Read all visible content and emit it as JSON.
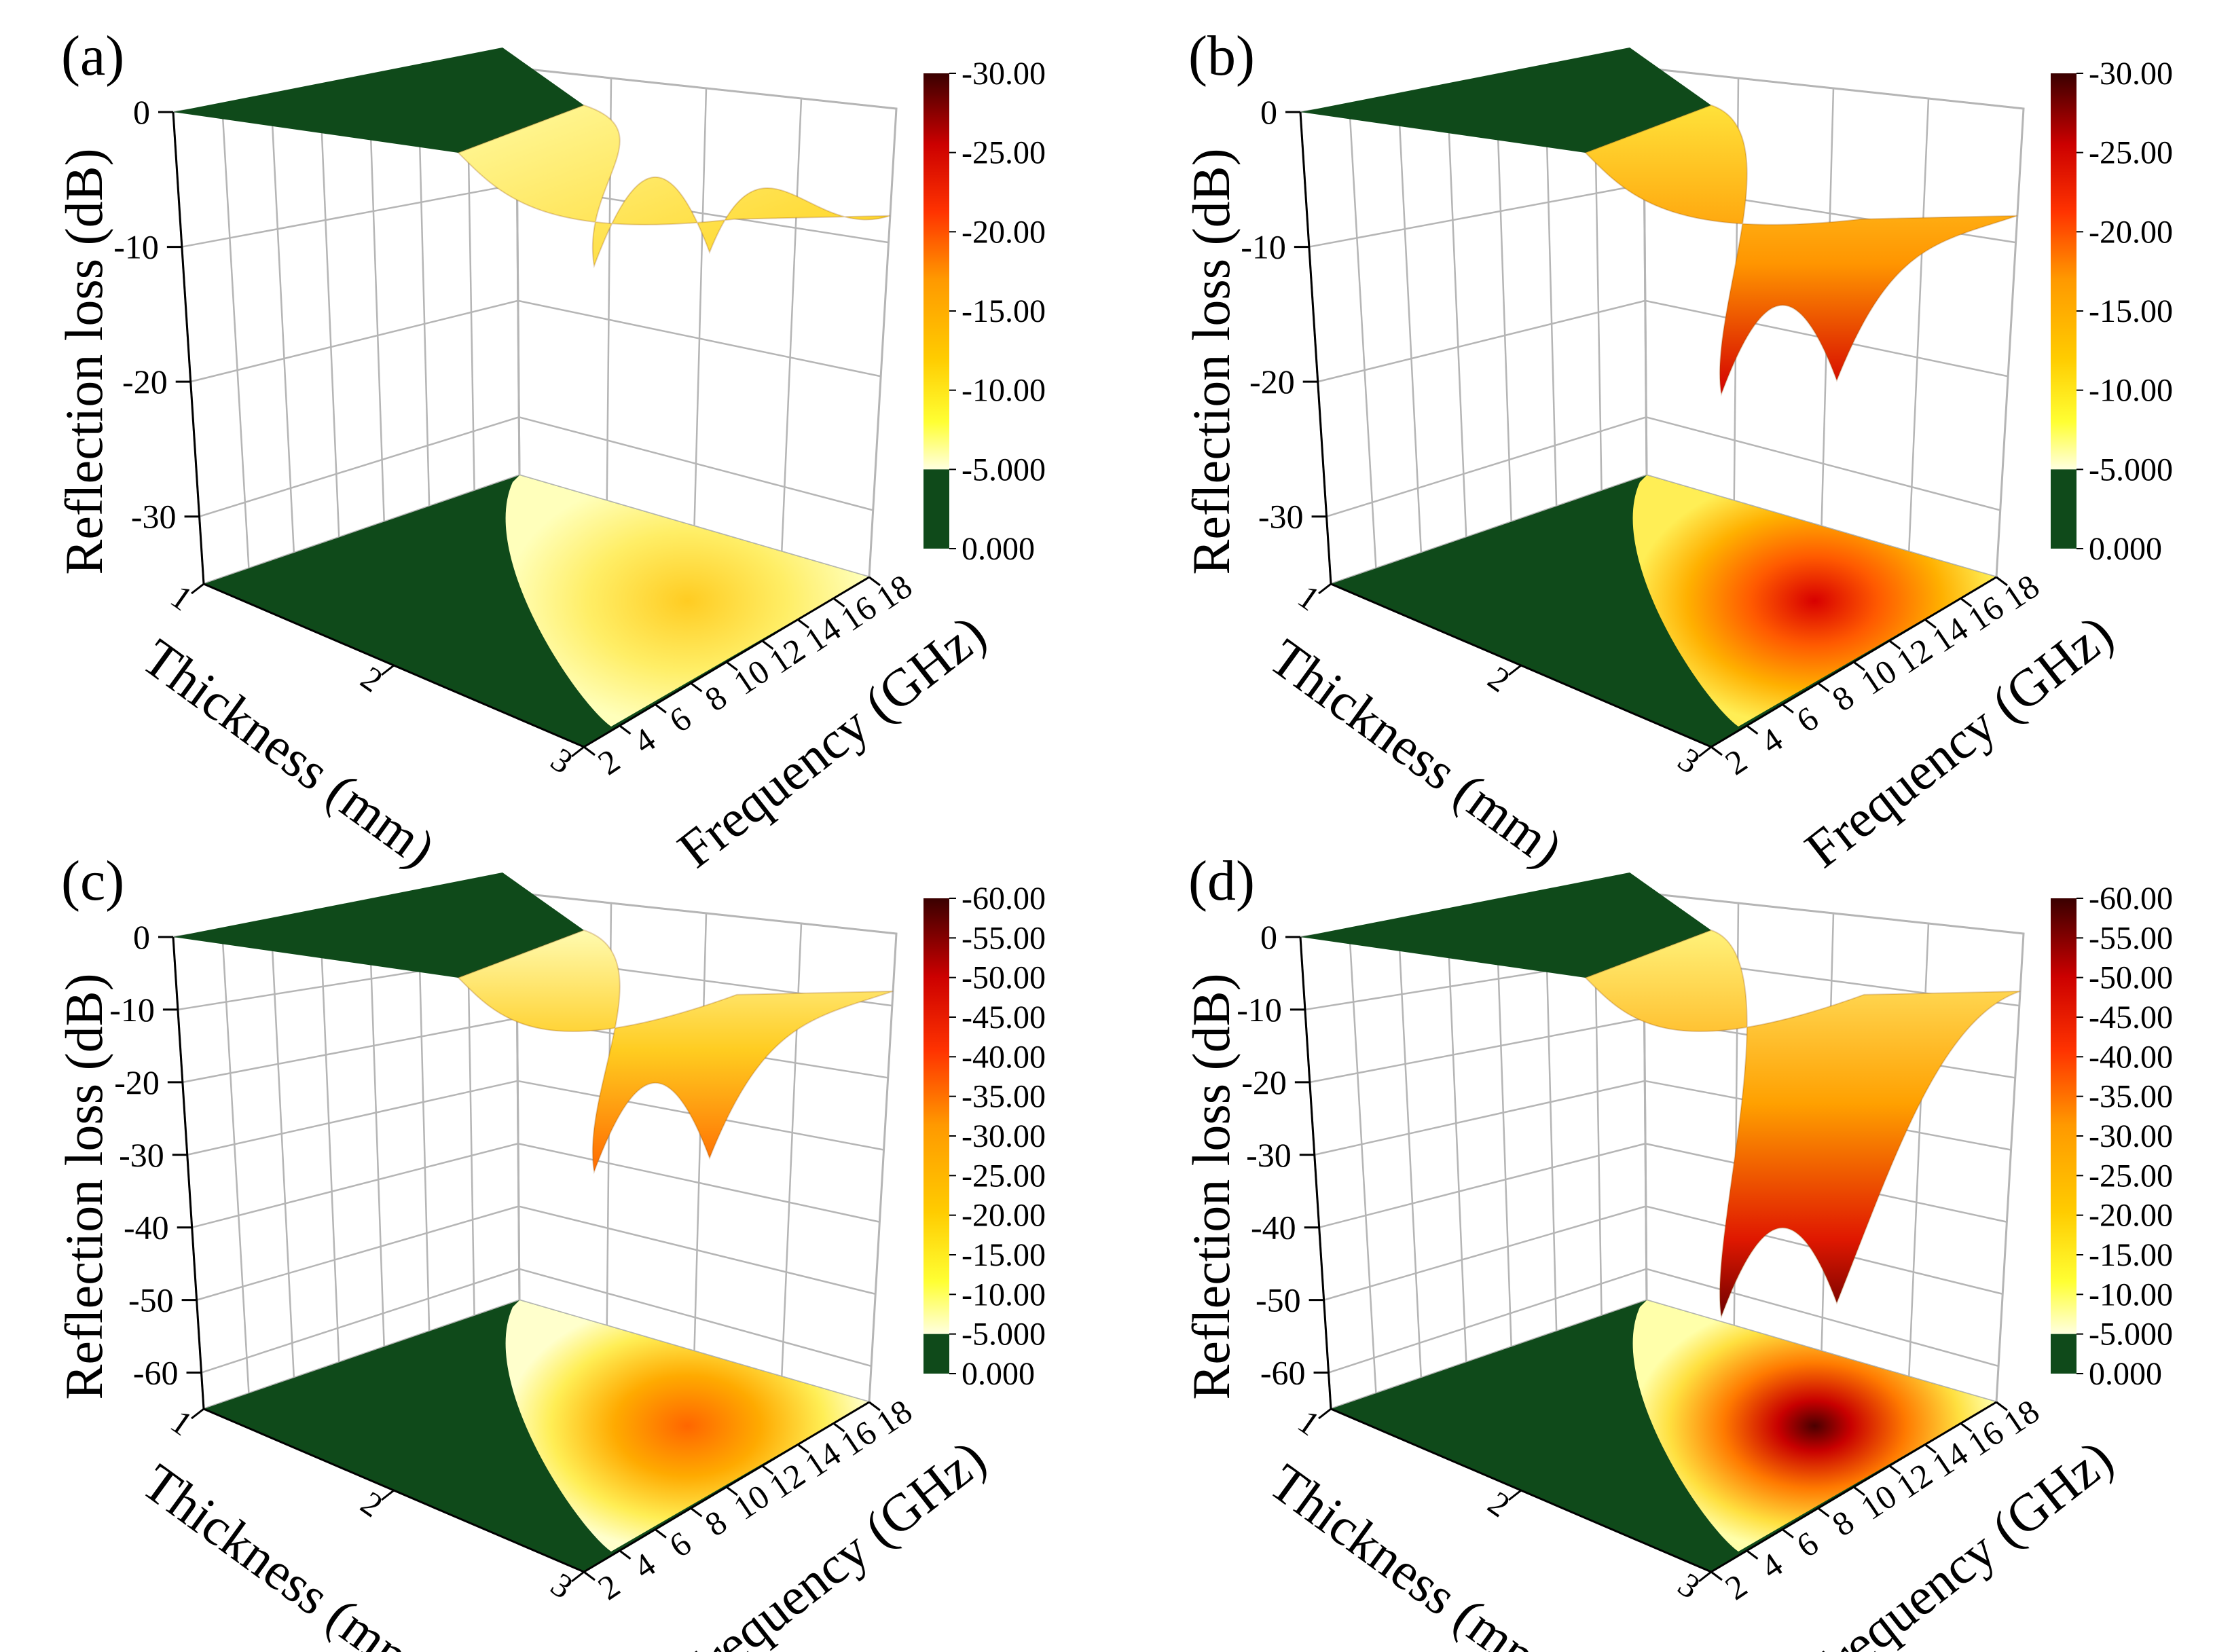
{
  "figure": {
    "axis_titles": {
      "z": "Reflection loss (dB)",
      "thickness": "Thickness (mm)",
      "frequency": "Frequency (GHz)"
    }
  },
  "colors": {
    "below_threshold": "#0f4a1a",
    "ramp": [
      "#ffffe0",
      "#ffff33",
      "#ffcc00",
      "#ff9900",
      "#ff3300",
      "#cc0000",
      "#3a0000"
    ],
    "grid": "#b5b5b5"
  },
  "chart_data": [
    {
      "type": "surface3d",
      "label": "(a)",
      "x_name": "Thickness (mm)",
      "x_ticks": [
        "1",
        "2",
        "3"
      ],
      "x_range": [
        1,
        3
      ],
      "y_name": "Frequency (GHz)",
      "y_ticks": [
        "2",
        "4",
        "6",
        "8",
        "10",
        "12",
        "14",
        "16",
        "18"
      ],
      "y_range": [
        2,
        18
      ],
      "z_name": "Reflection loss (dB)",
      "z_ticks": [
        "0",
        "-10",
        "-20",
        "-30"
      ],
      "z_range": [
        -35,
        0
      ],
      "colorbar_labels": [
        "-30.00",
        "-25.00",
        "-20.00",
        "-15.00",
        "-10.00",
        "-5.000",
        "0.000"
      ],
      "colorbar_range": [
        -30,
        0
      ],
      "threshold_db": -5,
      "min_reflection_loss_db": -12,
      "projection": "contour map on floor"
    },
    {
      "type": "surface3d",
      "label": "(b)",
      "x_name": "Thickness (mm)",
      "x_ticks": [
        "1",
        "2",
        "3"
      ],
      "x_range": [
        1,
        3
      ],
      "y_name": "Frequency (GHz)",
      "y_ticks": [
        "2",
        "4",
        "6",
        "8",
        "10",
        "12",
        "14",
        "16",
        "18"
      ],
      "y_range": [
        2,
        18
      ],
      "z_name": "Reflection loss (dB)",
      "z_ticks": [
        "0",
        "-10",
        "-20",
        "-30"
      ],
      "z_range": [
        -35,
        0
      ],
      "colorbar_labels": [
        "-30.00",
        "-25.00",
        "-20.00",
        "-15.00",
        "-10.00",
        "-5.000",
        "0.000"
      ],
      "colorbar_range": [
        -30,
        0
      ],
      "threshold_db": -5,
      "min_reflection_loss_db": -22,
      "projection": "contour map on floor"
    },
    {
      "type": "surface3d",
      "label": "(c)",
      "x_name": "Thickness (mm)",
      "x_ticks": [
        "1",
        "2",
        "3"
      ],
      "x_range": [
        1,
        3
      ],
      "y_name": "Frequency (GHz)",
      "y_ticks": [
        "2",
        "4",
        "6",
        "8",
        "10",
        "12",
        "14",
        "16",
        "18"
      ],
      "y_range": [
        2,
        18
      ],
      "z_name": "Reflection loss (dB)",
      "z_ticks": [
        "0",
        "-10",
        "-20",
        "-30",
        "-40",
        "-50",
        "-60"
      ],
      "z_range": [
        -65,
        0
      ],
      "colorbar_labels": [
        "-60.00",
        "-55.00",
        "-50.00",
        "-45.00",
        "-40.00",
        "-35.00",
        "-30.00",
        "-25.00",
        "-20.00",
        "-15.00",
        "-10.00",
        "-5.000",
        "0.000"
      ],
      "colorbar_range": [
        -60,
        0
      ],
      "threshold_db": -5,
      "min_reflection_loss_db": -34,
      "projection": "contour map on floor"
    },
    {
      "type": "surface3d",
      "label": "(d)",
      "x_name": "Thickness (mm)",
      "x_ticks": [
        "1",
        "2",
        "3"
      ],
      "x_range": [
        1,
        3
      ],
      "y_name": "Frequency (GHz)",
      "y_ticks": [
        "2",
        "4",
        "6",
        "8",
        "10",
        "12",
        "14",
        "16",
        "18"
      ],
      "y_range": [
        2,
        18
      ],
      "z_name": "Reflection loss (dB)",
      "z_ticks": [
        "0",
        "-10",
        "-20",
        "-30",
        "-40",
        "-50",
        "-60"
      ],
      "z_range": [
        -65,
        0
      ],
      "colorbar_labels": [
        "-60.00",
        "-55.00",
        "-50.00",
        "-45.00",
        "-40.00",
        "-35.00",
        "-30.00",
        "-25.00",
        "-20.00",
        "-15.00",
        "-10.00",
        "-5.000",
        "0.000"
      ],
      "colorbar_range": [
        -60,
        0
      ],
      "threshold_db": -5,
      "min_reflection_loss_db": -55,
      "projection": "contour map on floor"
    }
  ]
}
